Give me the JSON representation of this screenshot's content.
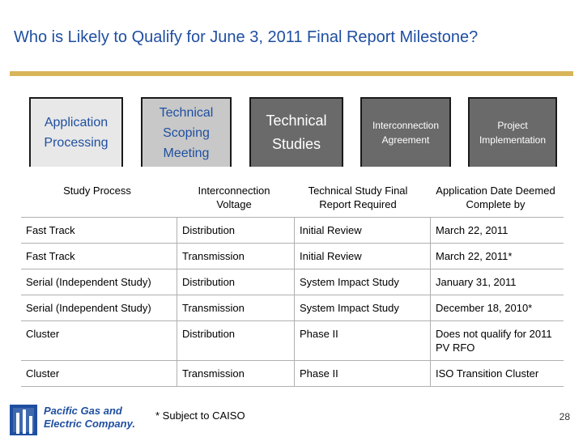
{
  "header": {
    "title": "Who is Likely to Qualify for June 3, 2011 Final Report Milestone?"
  },
  "process_steps": [
    {
      "label": "Application Processing"
    },
    {
      "label": "Technical Scoping Meeting"
    },
    {
      "label": "Technical Studies"
    },
    {
      "label": "Interconnection Agreement"
    },
    {
      "label": "Project Implementation"
    }
  ],
  "table": {
    "headers": [
      "Study Process",
      "Interconnection Voltage",
      "Technical Study Final Report Required",
      "Application Date Deemed Complete by"
    ],
    "rows": [
      [
        "Fast Track",
        "Distribution",
        "Initial Review",
        "March 22, 2011"
      ],
      [
        "Fast Track",
        "Transmission",
        "Initial Review",
        "March 22, 2011*"
      ],
      [
        "Serial (Independent Study)",
        "Distribution",
        "System Impact Study",
        "January 31, 2011"
      ],
      [
        "Serial (Independent Study)",
        "Transmission",
        "System Impact Study",
        "December 18, 2010*"
      ],
      [
        "Cluster",
        "Distribution",
        "Phase II",
        "Does not qualify for 2011 PV RFO"
      ],
      [
        "Cluster",
        "Transmission",
        "Phase II",
        "ISO Transition Cluster"
      ]
    ]
  },
  "footer": {
    "footnote": "* Subject to CAISO",
    "page_number": "28",
    "logo_line1": "Pacific Gas and",
    "logo_line2": "Electric Company."
  }
}
